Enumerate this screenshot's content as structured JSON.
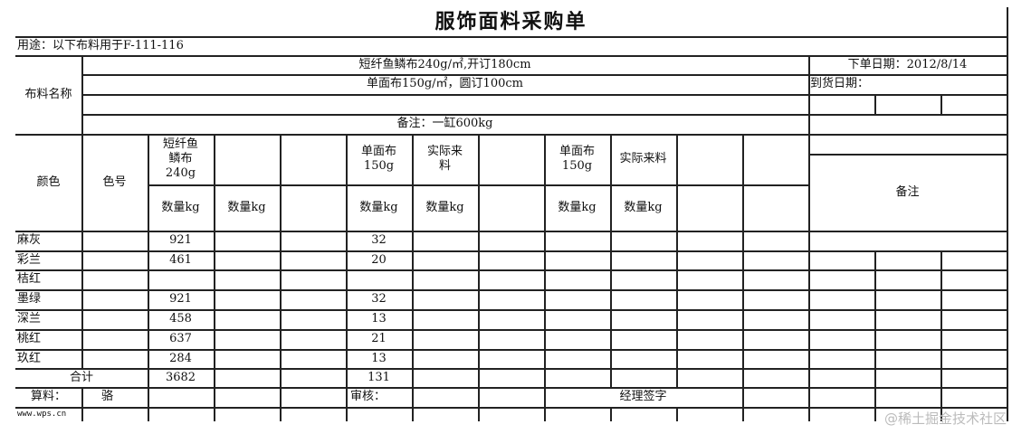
{
  "title": "服饰面料采购单",
  "purpose": "用途：以下布料用于F-111-116",
  "fabric_name_label": "布料名称",
  "fabrics": [
    "短纤鱼鳞布240g/㎡,开订180cm",
    "单面布150g/㎡，圆订100cm"
  ],
  "fabric_note": "备注：一缸600kg",
  "order_date": "下单日期：2012/8/14",
  "arrival_date": "到货日期：",
  "headers": {
    "color": "颜色",
    "color_code": "色号",
    "fabric_a": "短纤鱼\n鳞布\n240g",
    "fabric_b": "单面布\n150g",
    "actual_a": "实际来\n料",
    "fabric_c": "单面布\n150g",
    "actual_c": "实际来料",
    "qty": "数量kg",
    "remarks": "备注"
  },
  "rows": [
    {
      "color": "麻灰",
      "a": "921",
      "b": "32"
    },
    {
      "color": "彩兰",
      "a": "461",
      "b": "20"
    },
    {
      "color": "桔红",
      "a": "",
      "b": ""
    },
    {
      "color": "墨绿",
      "a": "921",
      "b": "32"
    },
    {
      "color": "深兰",
      "a": "458",
      "b": "13"
    },
    {
      "color": "桃红",
      "a": "637",
      "b": "21"
    },
    {
      "color": "玖红",
      "a": "284",
      "b": "13"
    }
  ],
  "total": {
    "label": "合计",
    "a": "3682",
    "b": "131"
  },
  "footer": {
    "calc_label": "算料：",
    "calc_value": "骆",
    "review_label": "审核：",
    "manager_sign": "经理签字",
    "site": "www.wps.cn"
  },
  "watermark": "@稀土掘金技术社区"
}
